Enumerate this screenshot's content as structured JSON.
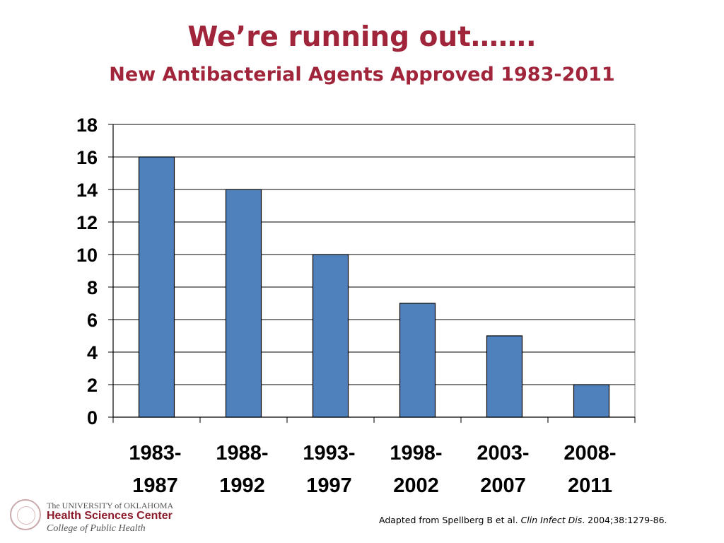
{
  "slide": {
    "title": "We’re running out…….",
    "subtitle": "New Antibacterial Agents Approved 1983-2011",
    "title_color": "#a0243a"
  },
  "chart_data": {
    "type": "bar",
    "title": "",
    "xlabel": "",
    "ylabel": "",
    "categories": [
      [
        "1983-",
        "1987"
      ],
      [
        "1988-",
        "1992"
      ],
      [
        "1993-",
        "1997"
      ],
      [
        "1998-",
        "2002"
      ],
      [
        "2003-",
        "2007"
      ],
      [
        "2008-",
        "2011"
      ]
    ],
    "values": [
      16,
      14,
      10,
      7,
      5,
      2
    ],
    "ylim": [
      0,
      18
    ],
    "yticks": [
      0,
      2,
      4,
      6,
      8,
      10,
      12,
      14,
      16,
      18
    ],
    "grid": true,
    "legend": "none",
    "bar_color": "#4f81bd"
  },
  "logo": {
    "line1": "The UNIVERSITY of OKLAHOMA",
    "line2": "Health Sciences Center",
    "line3": "College of Public Health"
  },
  "citation": {
    "prefix": "Adapted from Spellberg B et al. ",
    "journal": "Clin Infect Dis",
    "suffix": ". 2004;38:1279-86."
  }
}
